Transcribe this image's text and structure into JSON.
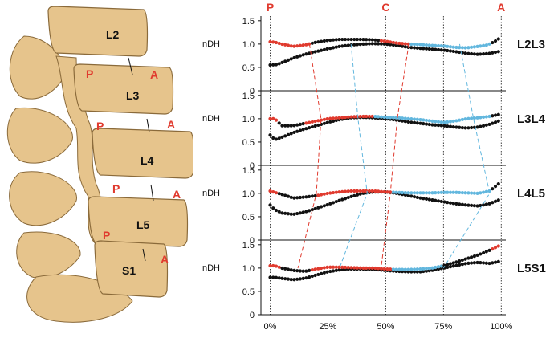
{
  "spine": {
    "vertebrae": [
      "L2",
      "L3",
      "L4",
      "L5",
      "S1"
    ],
    "marker_posterior": "P",
    "marker_anterior": "A",
    "bone_color": "#e6c48c",
    "label_color": "#e03a2e"
  },
  "chart_data": {
    "type": "scatter",
    "ylabel": "nDH",
    "ylim": [
      0,
      1.6
    ],
    "yticks": [
      "0",
      "0.5",
      "1.0",
      "1.5"
    ],
    "ytick_values": [
      0,
      0.5,
      1.0,
      1.5
    ],
    "xticks": [
      "0%",
      "25%",
      "50%",
      "75%",
      "100%"
    ],
    "xtick_values": [
      0,
      25,
      50,
      75,
      100
    ],
    "xlim": [
      -4,
      102
    ],
    "top_markers": [
      {
        "label": "P",
        "x": 0
      },
      {
        "label": "C",
        "x": 50
      },
      {
        "label": "A",
        "x": 100
      }
    ],
    "colors": {
      "red": "#e03a2e",
      "blue": "#62b7de",
      "black": "#111111",
      "bracket_red": "#e03a2e",
      "bracket_blue": "#62b7de"
    },
    "panels": [
      {
        "name": "L2L3",
        "upper": {
          "x": [
            0,
            2,
            5,
            10,
            15,
            20,
            25,
            30,
            35,
            40,
            45,
            50,
            55,
            60,
            65,
            70,
            75,
            80,
            85,
            90,
            94,
            97,
            100
          ],
          "y": [
            1.05,
            1.04,
            1.0,
            0.95,
            0.98,
            1.04,
            1.08,
            1.1,
            1.1,
            1.1,
            1.09,
            1.06,
            1.02,
            1.0,
            0.99,
            0.97,
            0.96,
            0.93,
            0.92,
            0.95,
            0.98,
            1.05,
            1.15
          ]
        },
        "lower": {
          "x": [
            0,
            3,
            6,
            10,
            15,
            20,
            25,
            30,
            35,
            40,
            45,
            50,
            55,
            60,
            65,
            70,
            75,
            80,
            85,
            90,
            95,
            100
          ],
          "y": [
            0.55,
            0.56,
            0.62,
            0.7,
            0.78,
            0.84,
            0.9,
            0.95,
            0.98,
            1.0,
            1.01,
            1.0,
            0.97,
            0.93,
            0.91,
            0.89,
            0.87,
            0.84,
            0.8,
            0.78,
            0.8,
            0.85
          ]
        },
        "red": [
          0,
          17
        ],
        "blue": [
          35,
          60
        ],
        "red2": [
          47,
          60
        ],
        "blue_x": [
          35,
          82
        ],
        "red_range": [
          [
            0,
            17
          ],
          [
            47,
            60
          ]
        ],
        "blue_range": [
          [
            60,
            95
          ]
        ]
      },
      {
        "name": "L3L4",
        "upper": {
          "x": [
            0,
            2,
            5,
            10,
            15,
            20,
            25,
            30,
            35,
            40,
            45,
            50,
            55,
            60,
            65,
            70,
            75,
            80,
            85,
            90,
            95,
            100
          ],
          "y": [
            1.0,
            1.0,
            0.85,
            0.85,
            0.9,
            0.95,
            1.0,
            1.02,
            1.04,
            1.05,
            1.05,
            1.03,
            1.02,
            1.0,
            0.98,
            0.95,
            0.92,
            0.95,
            1.0,
            1.02,
            1.05,
            1.1
          ]
        },
        "lower": {
          "x": [
            0,
            2,
            5,
            10,
            15,
            20,
            25,
            30,
            35,
            40,
            45,
            50,
            55,
            60,
            65,
            70,
            75,
            80,
            85,
            90,
            95,
            100
          ],
          "y": [
            0.65,
            0.55,
            0.6,
            0.7,
            0.78,
            0.85,
            0.92,
            0.98,
            1.02,
            1.03,
            1.02,
            1.0,
            0.97,
            0.93,
            0.9,
            0.87,
            0.85,
            0.82,
            0.8,
            0.82,
            0.88,
            0.97
          ]
        },
        "red_range": [
          [
            0,
            3
          ],
          [
            15,
            45
          ]
        ],
        "blue_range": [
          [
            40,
            95
          ]
        ]
      },
      {
        "name": "L4L5",
        "upper": {
          "x": [
            0,
            2,
            5,
            10,
            15,
            20,
            25,
            30,
            35,
            40,
            45,
            50,
            55,
            60,
            65,
            70,
            75,
            80,
            85,
            90,
            95,
            100
          ],
          "y": [
            1.05,
            1.02,
            0.98,
            0.9,
            0.92,
            0.95,
            1.0,
            1.03,
            1.05,
            1.05,
            1.05,
            1.03,
            1.02,
            1.01,
            1.01,
            1.01,
            1.02,
            1.02,
            1.01,
            1.0,
            1.05,
            1.25
          ]
        },
        "lower": {
          "x": [
            0,
            2,
            5,
            10,
            15,
            20,
            25,
            30,
            35,
            40,
            45,
            50,
            55,
            60,
            65,
            70,
            75,
            80,
            85,
            90,
            95,
            100
          ],
          "y": [
            0.75,
            0.65,
            0.58,
            0.55,
            0.6,
            0.68,
            0.76,
            0.85,
            0.93,
            1.0,
            1.03,
            1.03,
            1.0,
            0.95,
            0.9,
            0.86,
            0.82,
            0.78,
            0.75,
            0.73,
            0.78,
            0.88
          ]
        },
        "red_range": [
          [
            0,
            3
          ],
          [
            20,
            52
          ]
        ],
        "blue_range": [
          [
            52,
            95
          ]
        ]
      },
      {
        "name": "L5S1",
        "upper": {
          "x": [
            0,
            2,
            5,
            10,
            15,
            20,
            25,
            30,
            35,
            40,
            45,
            50,
            55,
            60,
            65,
            70,
            75,
            80,
            85,
            90,
            95,
            100
          ],
          "y": [
            1.05,
            1.05,
            1.0,
            0.95,
            0.93,
            0.98,
            1.02,
            1.02,
            1.01,
            1.0,
            1.0,
            0.98,
            0.97,
            0.97,
            0.98,
            1.0,
            1.05,
            1.12,
            1.2,
            1.28,
            1.38,
            1.5
          ]
        },
        "lower": {
          "x": [
            0,
            2,
            5,
            10,
            15,
            20,
            25,
            30,
            35,
            40,
            45,
            50,
            55,
            60,
            65,
            70,
            75,
            80,
            85,
            90,
            95,
            100
          ],
          "y": [
            0.8,
            0.8,
            0.78,
            0.75,
            0.78,
            0.85,
            0.92,
            0.96,
            0.98,
            0.98,
            0.97,
            0.95,
            0.93,
            0.92,
            0.92,
            0.95,
            1.0,
            1.05,
            1.1,
            1.12,
            1.1,
            1.15
          ]
        },
        "red_range": [
          [
            0,
            5
          ],
          [
            18,
            52
          ],
          [
            95,
            100
          ]
        ],
        "blue_range": [
          [
            30,
            42
          ],
          [
            52,
            75
          ]
        ]
      }
    ]
  }
}
